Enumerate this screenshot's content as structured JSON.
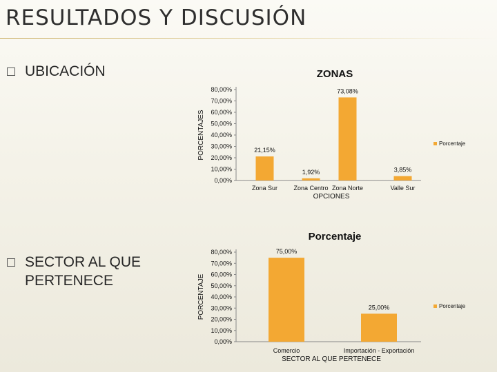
{
  "slide": {
    "title": "RESULTADOS Y DISCUSIÓN",
    "bullets": [
      {
        "icon": "square-bullet-icon",
        "label": "UBICACIÓN"
      },
      {
        "icon": "square-bullet-icon",
        "label": "SECTOR AL QUE\nPERTENECE"
      }
    ]
  },
  "colors": {
    "bar": "#F3A833",
    "accent_rule": "#C7A95A",
    "legend_swatch": "#F3A833"
  },
  "chart_data": [
    {
      "type": "bar",
      "title": "ZONAS",
      "categories": [
        "Zona Sur",
        "Zona Centro",
        "Zona Norte",
        "Valle Sur"
      ],
      "values": [
        21.15,
        1.92,
        73.08,
        3.85
      ],
      "data_labels": [
        "21,15%",
        "1,92%",
        "73,08%",
        "3,85%"
      ],
      "xlabel": "OPCIONES",
      "ylabel": "PORCENTAJES",
      "ylim": [
        0,
        80
      ],
      "yticks": [
        "0,00%",
        "10,00%",
        "20,00%",
        "30,00%",
        "40,00%",
        "50,00%",
        "60,00%",
        "70,00%",
        "80,00%"
      ],
      "legend": {
        "label": "Porcentaje",
        "position": "right"
      },
      "grid": false
    },
    {
      "type": "bar",
      "title": "Porcentaje",
      "categories": [
        "Comercio",
        "Importación - Exportación"
      ],
      "values": [
        75.0,
        25.0
      ],
      "data_labels": [
        "75,00%",
        "25,00%"
      ],
      "xlabel": "SECTOR AL QUE PERTENECE",
      "ylabel": "PORCENTAJE",
      "ylim": [
        0,
        80
      ],
      "yticks": [
        "0,00%",
        "10,00%",
        "20,00%",
        "30,00%",
        "40,00%",
        "50,00%",
        "60,00%",
        "70,00%",
        "80,00%"
      ],
      "legend": {
        "label": "Porcentaje",
        "position": "right"
      },
      "grid": false
    }
  ]
}
